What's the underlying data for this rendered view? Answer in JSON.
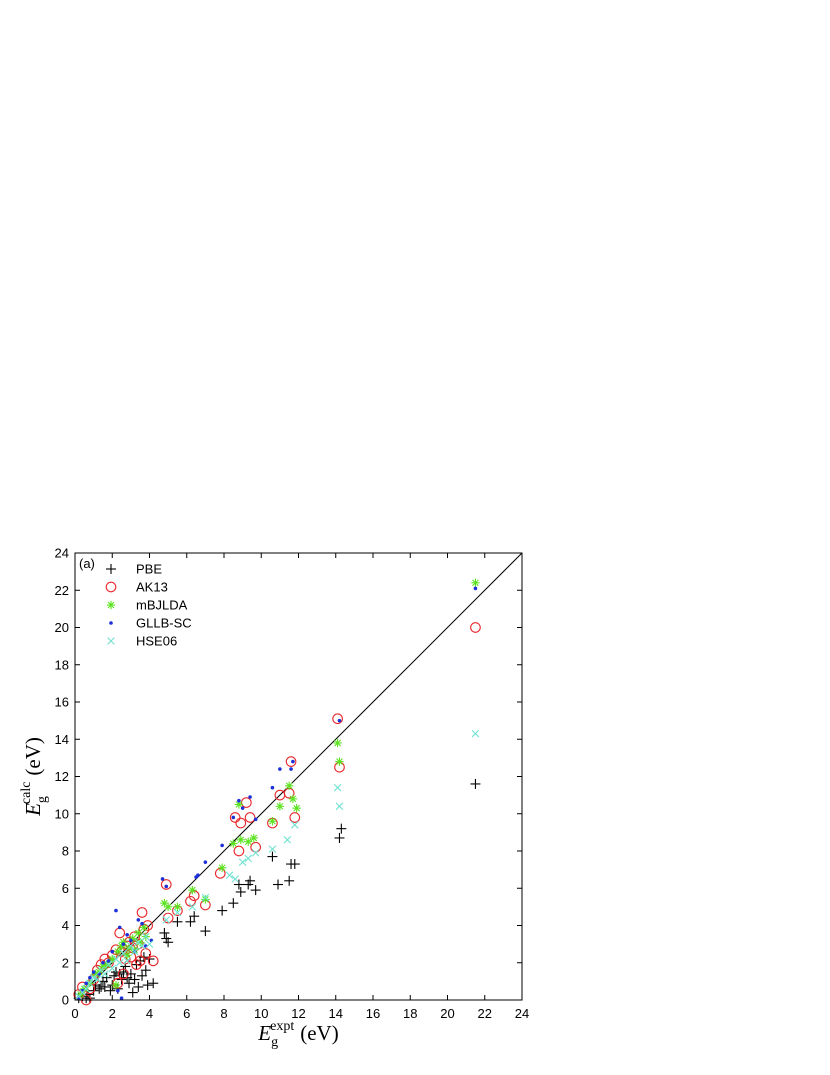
{
  "chart_data": {
    "type": "scatter",
    "panel_label": "(a)",
    "xlabel": {
      "main": "E",
      "sub": "g",
      "sup": "expt",
      "unit": "(eV)"
    },
    "ylabel": {
      "main": "E",
      "sub": "g",
      "sup": "calc",
      "unit": "(eV)"
    },
    "xlim": [
      0,
      24
    ],
    "ylim": [
      0,
      24
    ],
    "xticks": [
      0,
      2,
      4,
      6,
      8,
      10,
      12,
      14,
      16,
      18,
      20,
      22,
      24
    ],
    "yticks": [
      0,
      2,
      4,
      6,
      8,
      10,
      12,
      14,
      16,
      18,
      20,
      22,
      24
    ],
    "grid": false,
    "legend_position": "top-left",
    "reference_line": {
      "from": [
        0,
        0
      ],
      "to": [
        24,
        24
      ],
      "color": "#000000"
    },
    "series": [
      {
        "name": "PBE",
        "marker": "plus",
        "color": "#000000",
        "points": [
          [
            0.2,
            0.1
          ],
          [
            0.4,
            0.2
          ],
          [
            0.6,
            0.1
          ],
          [
            0.7,
            0.3
          ],
          [
            0.8,
            0.1
          ],
          [
            1.0,
            0.5
          ],
          [
            1.1,
            0.8
          ],
          [
            1.3,
            0.6
          ],
          [
            1.4,
            0.7
          ],
          [
            1.5,
            1.0
          ],
          [
            1.6,
            0.7
          ],
          [
            1.7,
            1.2
          ],
          [
            1.9,
            0.5
          ],
          [
            2.0,
            0.8
          ],
          [
            2.1,
            1.3
          ],
          [
            2.2,
            1.5
          ],
          [
            2.3,
            0.6
          ],
          [
            2.4,
            1.4
          ],
          [
            2.5,
            1.1
          ],
          [
            2.6,
            1.5
          ],
          [
            2.7,
            1.8
          ],
          [
            2.8,
            1.2
          ],
          [
            2.9,
            0.9
          ],
          [
            3.0,
            1.4
          ],
          [
            3.1,
            0.4
          ],
          [
            3.2,
            1.1
          ],
          [
            3.3,
            1.9
          ],
          [
            3.4,
            0.7
          ],
          [
            3.5,
            2.1
          ],
          [
            3.6,
            1.3
          ],
          [
            3.7,
            2.3
          ],
          [
            3.8,
            1.6
          ],
          [
            3.9,
            0.8
          ],
          [
            4.0,
            2.2
          ],
          [
            4.2,
            0.9
          ],
          [
            4.8,
            3.6
          ],
          [
            4.9,
            3.3
          ],
          [
            5.0,
            3.1
          ],
          [
            5.5,
            4.2
          ],
          [
            6.2,
            4.2
          ],
          [
            6.4,
            4.5
          ],
          [
            7.0,
            3.7
          ],
          [
            7.9,
            4.8
          ],
          [
            8.5,
            5.2
          ],
          [
            8.8,
            6.2
          ],
          [
            8.9,
            5.8
          ],
          [
            9.3,
            6.2
          ],
          [
            9.4,
            6.4
          ],
          [
            9.7,
            5.9
          ],
          [
            10.6,
            7.7
          ],
          [
            10.9,
            6.2
          ],
          [
            11.5,
            6.4
          ],
          [
            11.6,
            7.3
          ],
          [
            11.8,
            7.3
          ],
          [
            14.2,
            8.7
          ],
          [
            14.3,
            9.2
          ],
          [
            21.5,
            11.6
          ]
        ]
      },
      {
        "name": "AK13",
        "marker": "circle",
        "color": "#e8262a",
        "points": [
          [
            0.2,
            0.3
          ],
          [
            0.4,
            0.7
          ],
          [
            0.6,
            0.0
          ],
          [
            0.8,
            0.6
          ],
          [
            1.0,
            1.1
          ],
          [
            1.2,
            1.6
          ],
          [
            1.4,
            1.9
          ],
          [
            1.6,
            2.2
          ],
          [
            1.8,
            2.0
          ],
          [
            2.0,
            2.4
          ],
          [
            2.2,
            2.7
          ],
          [
            2.3,
            0.9
          ],
          [
            2.4,
            3.6
          ],
          [
            2.5,
            2.6
          ],
          [
            2.6,
            1.4
          ],
          [
            2.7,
            2.2
          ],
          [
            2.8,
            2.9
          ],
          [
            2.9,
            3.1
          ],
          [
            3.0,
            2.3
          ],
          [
            3.1,
            2.8
          ],
          [
            3.2,
            3.4
          ],
          [
            3.3,
            1.9
          ],
          [
            3.4,
            3.0
          ],
          [
            3.5,
            2.1
          ],
          [
            3.6,
            4.7
          ],
          [
            3.7,
            3.8
          ],
          [
            3.8,
            2.5
          ],
          [
            3.9,
            4.0
          ],
          [
            4.2,
            2.1
          ],
          [
            4.9,
            6.2
          ],
          [
            5.0,
            4.4
          ],
          [
            5.5,
            4.8
          ],
          [
            6.2,
            5.3
          ],
          [
            6.4,
            5.6
          ],
          [
            7.0,
            5.1
          ],
          [
            7.8,
            6.8
          ],
          [
            8.6,
            9.8
          ],
          [
            8.8,
            8.0
          ],
          [
            8.9,
            9.5
          ],
          [
            9.2,
            10.6
          ],
          [
            9.4,
            9.8
          ],
          [
            9.7,
            8.2
          ],
          [
            10.6,
            9.5
          ],
          [
            11.0,
            11.0
          ],
          [
            11.5,
            11.1
          ],
          [
            11.6,
            12.8
          ],
          [
            11.8,
            9.8
          ],
          [
            14.1,
            15.1
          ],
          [
            14.2,
            12.5
          ],
          [
            21.5,
            20.0
          ]
        ]
      },
      {
        "name": "mBJLDA",
        "marker": "star",
        "color": "#5be31f",
        "points": [
          [
            0.3,
            0.3
          ],
          [
            0.5,
            0.6
          ],
          [
            0.8,
            0.9
          ],
          [
            1.1,
            1.4
          ],
          [
            1.3,
            1.5
          ],
          [
            1.5,
            1.8
          ],
          [
            1.7,
            1.9
          ],
          [
            2.0,
            2.2
          ],
          [
            2.2,
            0.8
          ],
          [
            2.3,
            2.6
          ],
          [
            2.5,
            2.9
          ],
          [
            2.6,
            3.1
          ],
          [
            2.8,
            2.4
          ],
          [
            2.9,
            2.8
          ],
          [
            3.1,
            3.3
          ],
          [
            3.2,
            2.7
          ],
          [
            3.4,
            3.6
          ],
          [
            3.5,
            3.1
          ],
          [
            3.7,
            3.9
          ],
          [
            3.8,
            3.4
          ],
          [
            4.8,
            5.2
          ],
          [
            5.0,
            5.0
          ],
          [
            5.5,
            5.0
          ],
          [
            6.3,
            5.9
          ],
          [
            7.0,
            5.4
          ],
          [
            7.9,
            7.1
          ],
          [
            8.5,
            8.4
          ],
          [
            8.8,
            10.5
          ],
          [
            8.9,
            8.6
          ],
          [
            9.3,
            8.5
          ],
          [
            9.6,
            8.7
          ],
          [
            10.6,
            9.6
          ],
          [
            11.0,
            10.4
          ],
          [
            11.5,
            11.5
          ],
          [
            11.7,
            10.8
          ],
          [
            11.9,
            10.3
          ],
          [
            14.1,
            13.8
          ],
          [
            14.2,
            12.8
          ],
          [
            21.5,
            22.4
          ]
        ]
      },
      {
        "name": "GLLB-SC",
        "marker": "dot",
        "color": "#1c2fd9",
        "points": [
          [
            0.2,
            0.1
          ],
          [
            0.4,
            0.5
          ],
          [
            0.6,
            0.9
          ],
          [
            0.8,
            1.2
          ],
          [
            1.0,
            1.5
          ],
          [
            1.3,
            1.4
          ],
          [
            1.5,
            2.0
          ],
          [
            1.8,
            2.1
          ],
          [
            2.0,
            2.6
          ],
          [
            2.2,
            4.8
          ],
          [
            2.3,
            0.5
          ],
          [
            2.4,
            3.9
          ],
          [
            2.5,
            0.1
          ],
          [
            2.6,
            3.0
          ],
          [
            2.8,
            3.5
          ],
          [
            3.0,
            3.2
          ],
          [
            3.2,
            2.6
          ],
          [
            3.4,
            4.3
          ],
          [
            3.6,
            4.1
          ],
          [
            3.8,
            2.9
          ],
          [
            4.1,
            3.2
          ],
          [
            4.7,
            6.5
          ],
          [
            4.9,
            6.1
          ],
          [
            6.5,
            6.6
          ],
          [
            6.6,
            6.7
          ],
          [
            7.0,
            7.4
          ],
          [
            7.9,
            8.3
          ],
          [
            8.5,
            9.8
          ],
          [
            8.8,
            10.7
          ],
          [
            9.0,
            10.3
          ],
          [
            9.4,
            10.9
          ],
          [
            9.7,
            9.7
          ],
          [
            10.6,
            11.4
          ],
          [
            11.0,
            12.4
          ],
          [
            11.6,
            12.4
          ],
          [
            11.7,
            12.8
          ],
          [
            14.2,
            15.0
          ],
          [
            21.5,
            22.1
          ]
        ]
      },
      {
        "name": "HSE06",
        "marker": "cross",
        "color": "#6fe3d2",
        "points": [
          [
            0.2,
            0.2
          ],
          [
            0.4,
            0.4
          ],
          [
            0.6,
            0.6
          ],
          [
            0.8,
            0.9
          ],
          [
            1.0,
            1.2
          ],
          [
            1.2,
            1.1
          ],
          [
            1.4,
            1.6
          ],
          [
            1.6,
            1.4
          ],
          [
            1.8,
            1.9
          ],
          [
            2.0,
            1.7
          ],
          [
            2.2,
            2.2
          ],
          [
            2.4,
            2.0
          ],
          [
            2.6,
            2.5
          ],
          [
            2.8,
            2.1
          ],
          [
            3.0,
            2.9
          ],
          [
            3.2,
            2.6
          ],
          [
            3.4,
            3.1
          ],
          [
            3.6,
            2.9
          ],
          [
            3.8,
            3.4
          ],
          [
            4.0,
            3.0
          ],
          [
            4.9,
            4.3
          ],
          [
            5.5,
            4.7
          ],
          [
            6.3,
            5.0
          ],
          [
            7.0,
            5.5
          ],
          [
            8.3,
            6.7
          ],
          [
            8.6,
            6.5
          ],
          [
            9.0,
            7.4
          ],
          [
            9.3,
            7.6
          ],
          [
            9.7,
            7.9
          ],
          [
            10.6,
            8.1
          ],
          [
            11.4,
            8.6
          ],
          [
            11.8,
            9.4
          ],
          [
            14.1,
            11.4
          ],
          [
            14.2,
            10.4
          ],
          [
            21.5,
            14.3
          ]
        ]
      }
    ]
  }
}
